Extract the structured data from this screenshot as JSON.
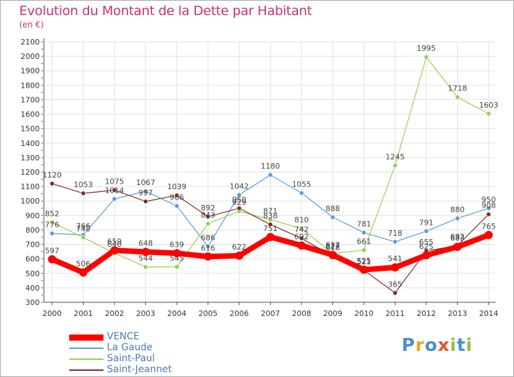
{
  "title": "Evolution du Montant de la Dette par Habitant",
  "unit_label": "(en €)",
  "logo": {
    "text": "Proxiti",
    "letters": [
      {
        "ch": "P",
        "color": "#4c8ed0"
      },
      {
        "ch": "r",
        "color": "#f2a31a"
      },
      {
        "ch": "o",
        "color": "#4c8ed0"
      },
      {
        "ch": "x",
        "color": "#e8542a"
      },
      {
        "ch": "i",
        "color": "#8cc63f"
      },
      {
        "ch": "t",
        "color": "#4c8ed0"
      },
      {
        "ch": "i",
        "color": "#8cc63f"
      }
    ]
  },
  "chart_data": {
    "type": "line",
    "title": "Evolution du Montant de la Dette par Habitant",
    "ylabel": "(en €)",
    "xlabel": "",
    "x": [
      "2000",
      "2001",
      "2002",
      "2003",
      "2004",
      "2005",
      "2006",
      "2007",
      "2008",
      "2009",
      "2010",
      "2011",
      "2012",
      "2013",
      "2014"
    ],
    "ylim": [
      300,
      2100
    ],
    "yticks": [
      300,
      400,
      500,
      600,
      700,
      800,
      900,
      1000,
      1100,
      1200,
      1300,
      1400,
      1500,
      1600,
      1700,
      1800,
      1900,
      2000,
      2100
    ],
    "grid": true,
    "legend_position": "bottom-left",
    "series": [
      {
        "name": "VENCE",
        "color": "#ff0000",
        "values": [
          597,
          506,
          659,
          648,
          639,
          616,
          622,
          751,
          692,
          627,
          525,
          541,
          625,
          683,
          765
        ]
      },
      {
        "name": "La Gaude",
        "color": "#5b9bd5",
        "values": [
          776,
          766,
          1014,
          1067,
          966,
          686,
          1042,
          1180,
          1055,
          888,
          781,
          718,
          791,
          880,
          950
        ]
      },
      {
        "name": "Saint-Paul",
        "color": "#92d050",
        "values": [
          852,
          748,
          640,
          544,
          545,
          843,
          929,
          871,
          810,
          637,
          661,
          1245,
          1995,
          1718,
          1603
        ]
      },
      {
        "name": "Saint-Jeannet",
        "color": "#7b2c2c",
        "values": [
          1120,
          1053,
          1075,
          997,
          1039,
          892,
          950,
          838,
          742,
          618,
          521,
          365,
          655,
          692,
          908
        ]
      }
    ],
    "labels": {
      "VENCE": [
        "597",
        "506",
        "659",
        "648",
        "639",
        "616",
        "622",
        "751",
        "692",
        "627",
        "525",
        "541",
        "625",
        "683",
        "765"
      ],
      "La Gaude": [
        "776",
        "766",
        "1014",
        "1067",
        "966",
        "686",
        "1042",
        "1180",
        "1055",
        "888",
        "781",
        "718",
        "791",
        "880",
        "950"
      ],
      "Saint-Paul": [
        "852",
        "748",
        "640",
        "544",
        "545",
        "843",
        "929",
        "871",
        "810",
        "637",
        "661",
        "1245",
        "1995",
        "1718",
        "1603"
      ],
      "Saint-Jeannet": [
        "1120",
        "1053",
        "1075",
        "997",
        "1039",
        "892",
        "950",
        "838",
        "742",
        "618",
        "521",
        "365",
        "655",
        "692",
        "908"
      ]
    }
  },
  "legend": [
    {
      "label": "VENCE",
      "color": "#ff0000"
    },
    {
      "label": "La Gaude",
      "color": "#5b9bd5"
    },
    {
      "label": "Saint-Paul",
      "color": "#92d050"
    },
    {
      "label": "Saint-Jeannet",
      "color": "#7b2c2c"
    }
  ]
}
